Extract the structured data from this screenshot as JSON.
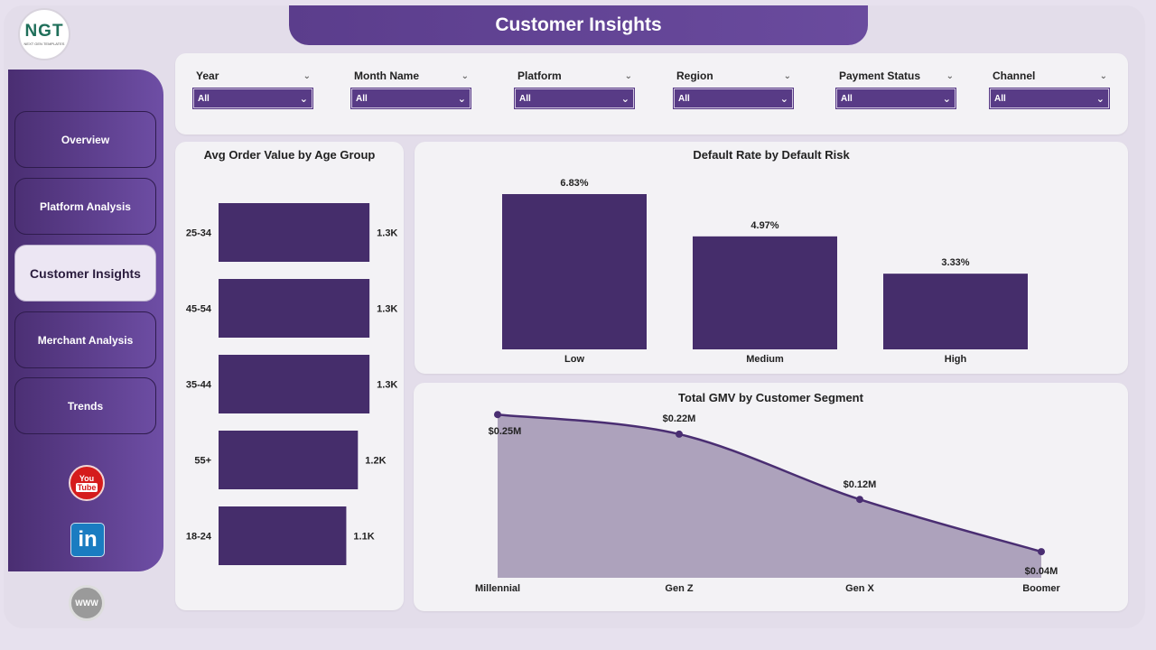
{
  "header": {
    "title": "Customer Insights"
  },
  "logo": {
    "text": "NGT",
    "subtext": "NEXT GEN TEMPLATES"
  },
  "sidebar": {
    "items": [
      {
        "label": "Overview",
        "active": false
      },
      {
        "label": "Platform Analysis",
        "active": false
      },
      {
        "label": "Customer Insights",
        "active": true
      },
      {
        "label": "Merchant Analysis",
        "active": false
      },
      {
        "label": "Trends",
        "active": false
      }
    ],
    "youtube": {
      "line1": "You",
      "line2": "Tube"
    },
    "linkedin": "in",
    "www": "WWW"
  },
  "filters": [
    {
      "label": "Year",
      "value": "All"
    },
    {
      "label": "Month Name",
      "value": "All"
    },
    {
      "label": "Platform",
      "value": "All"
    },
    {
      "label": "Region",
      "value": "All"
    },
    {
      "label": "Payment Status",
      "value": "All"
    },
    {
      "label": "Channel",
      "value": "All"
    }
  ],
  "colors": {
    "accent": "#583b86",
    "bar": "#452d6b",
    "area": "#ada2bc",
    "line": "#4a2e72"
  },
  "chart_data": [
    {
      "type": "bar",
      "orientation": "horizontal",
      "title": "Avg Order Value by Age Group",
      "categories": [
        "25-34",
        "45-54",
        "35-44",
        "55+",
        "18-24"
      ],
      "values": [
        1300,
        1300,
        1300,
        1200,
        1100
      ],
      "labels": [
        "1.3K",
        "1.3K",
        "1.3K",
        "1.2K",
        "1.1K"
      ]
    },
    {
      "type": "bar",
      "title": "Default Rate by Default Risk",
      "categories": [
        "Low",
        "Medium",
        "High"
      ],
      "values": [
        6.83,
        4.97,
        3.33
      ],
      "labels": [
        "6.83%",
        "4.97%",
        "3.33%"
      ]
    },
    {
      "type": "area",
      "title": "Total GMV by Customer Segment",
      "categories": [
        "Millennial",
        "Gen Z",
        "Gen X",
        "Boomer"
      ],
      "values": [
        0.25,
        0.22,
        0.12,
        0.04
      ],
      "labels": [
        "$0.25M",
        "$0.22M",
        "$0.12M",
        "$0.04M"
      ]
    }
  ]
}
